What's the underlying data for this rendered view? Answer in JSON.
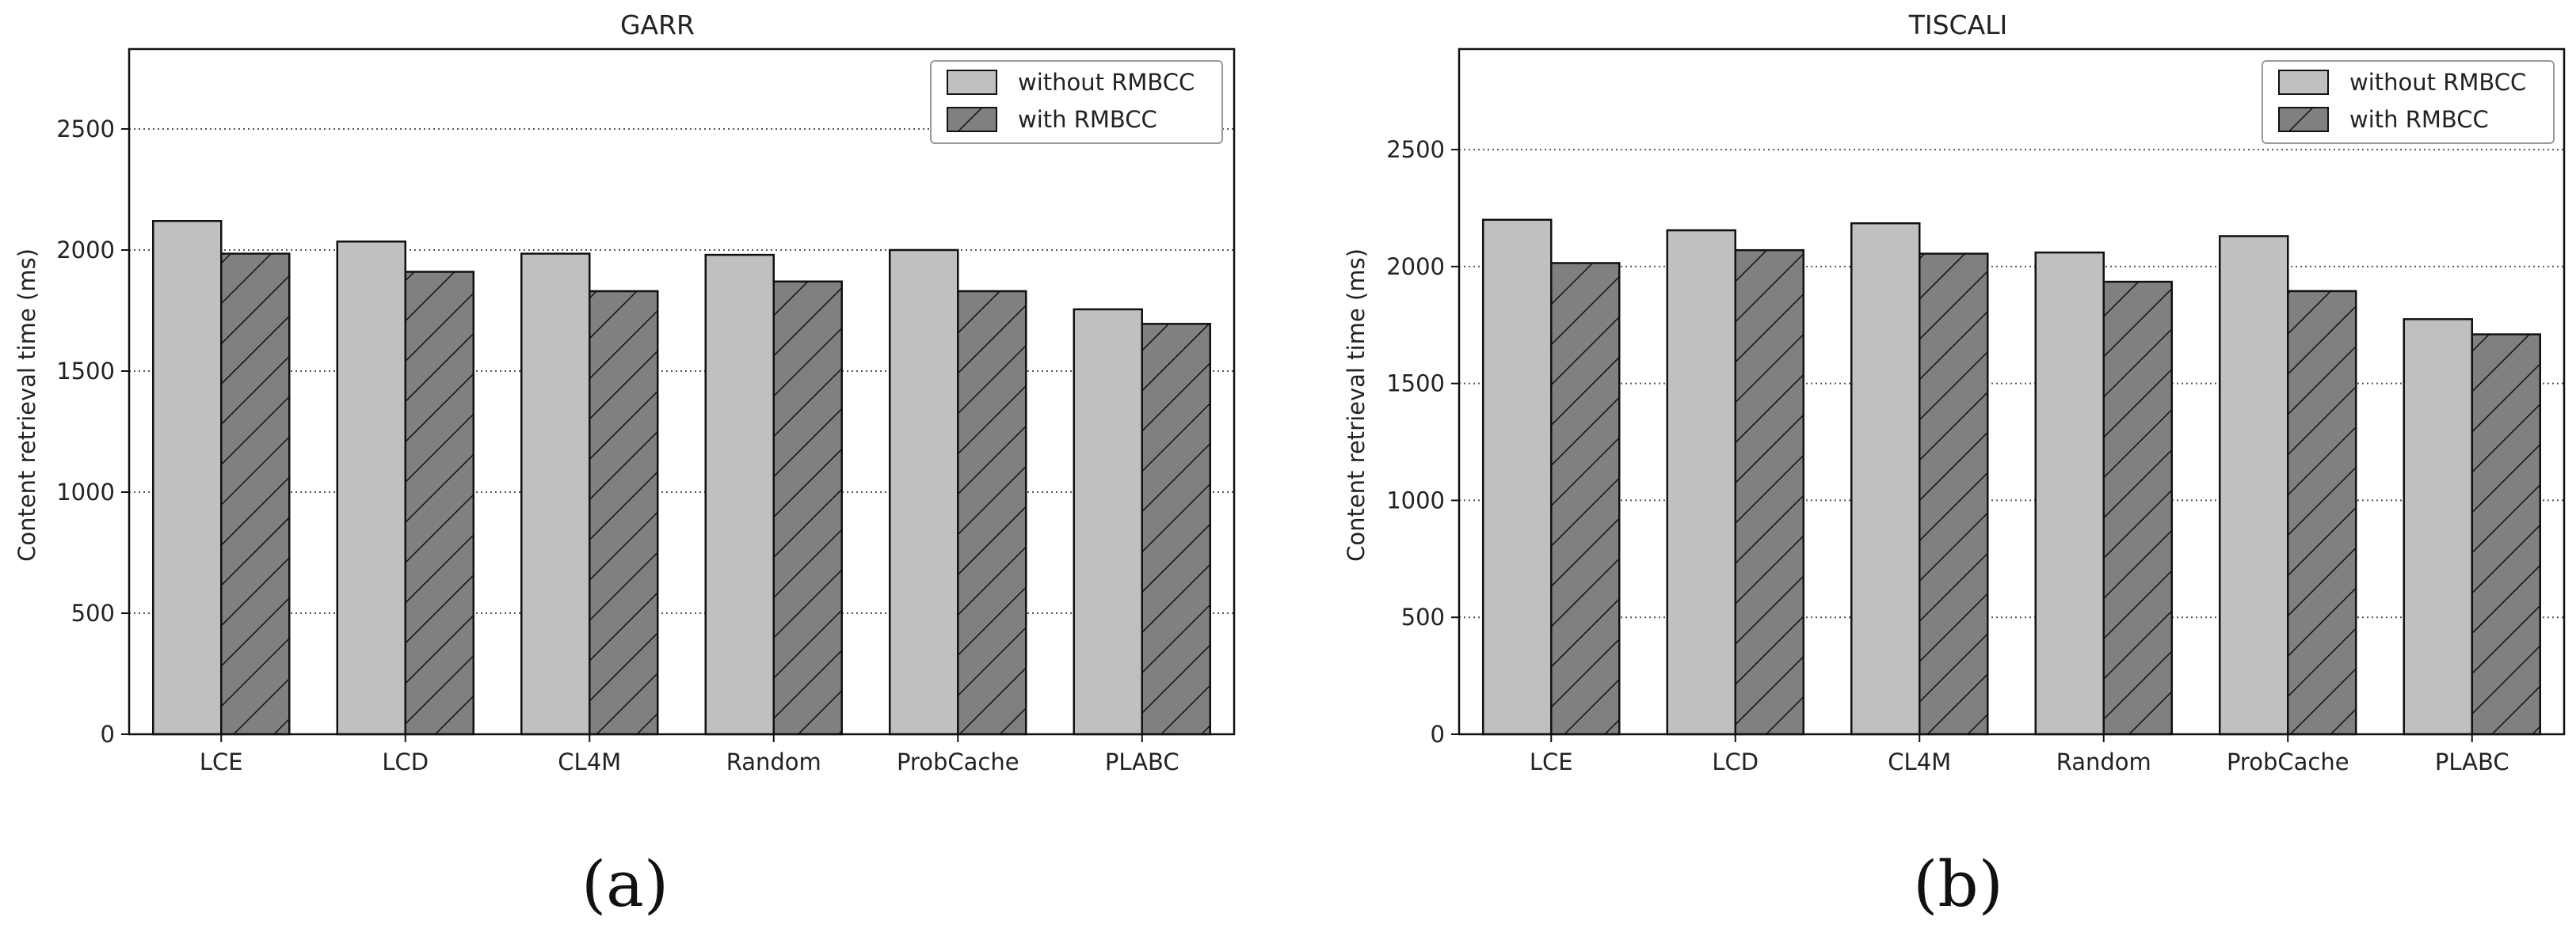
{
  "colors": {
    "without": "#c0c0c0",
    "with": "#808080",
    "edge": "#111111",
    "grid": "#555555"
  },
  "chart_data": [
    {
      "type": "bar",
      "title": "GARR",
      "panel_label": "(a)",
      "ylabel": "Content retrieval time (ms)",
      "xlabel": "",
      "categories": [
        "LCE",
        "LCD",
        "CL4M",
        "Random",
        "ProbCache",
        "PLABC"
      ],
      "yticks": [
        0,
        500,
        1000,
        1500,
        2000,
        2500
      ],
      "ylim": [
        0,
        2830
      ],
      "grid": "y-dotted",
      "legend_position": "top-right",
      "series": [
        {
          "name": "without RMBCC",
          "pattern": "solid",
          "values": [
            2120,
            2035,
            1985,
            1980,
            2000,
            1755
          ]
        },
        {
          "name": "with RMBCC",
          "pattern": "hatched",
          "values": [
            1985,
            1910,
            1830,
            1870,
            1830,
            1695
          ]
        }
      ]
    },
    {
      "type": "bar",
      "title": "TISCALI",
      "panel_label": "(b)",
      "ylabel": "Content retrieval time (ms)",
      "xlabel": "",
      "categories": [
        "LCE",
        "LCD",
        "CL4M",
        "Random",
        "ProbCache",
        "PLABC"
      ],
      "yticks": [
        0,
        500,
        1000,
        1500,
        2000,
        2500
      ],
      "ylim": [
        0,
        2930
      ],
      "grid": "y-dotted",
      "legend_position": "top-right",
      "series": [
        {
          "name": "without RMBCC",
          "pattern": "solid",
          "values": [
            2200,
            2155,
            2185,
            2060,
            2130,
            1775
          ]
        },
        {
          "name": "with RMBCC",
          "pattern": "hatched",
          "values": [
            2015,
            2070,
            2055,
            1935,
            1895,
            1710
          ]
        }
      ]
    }
  ]
}
